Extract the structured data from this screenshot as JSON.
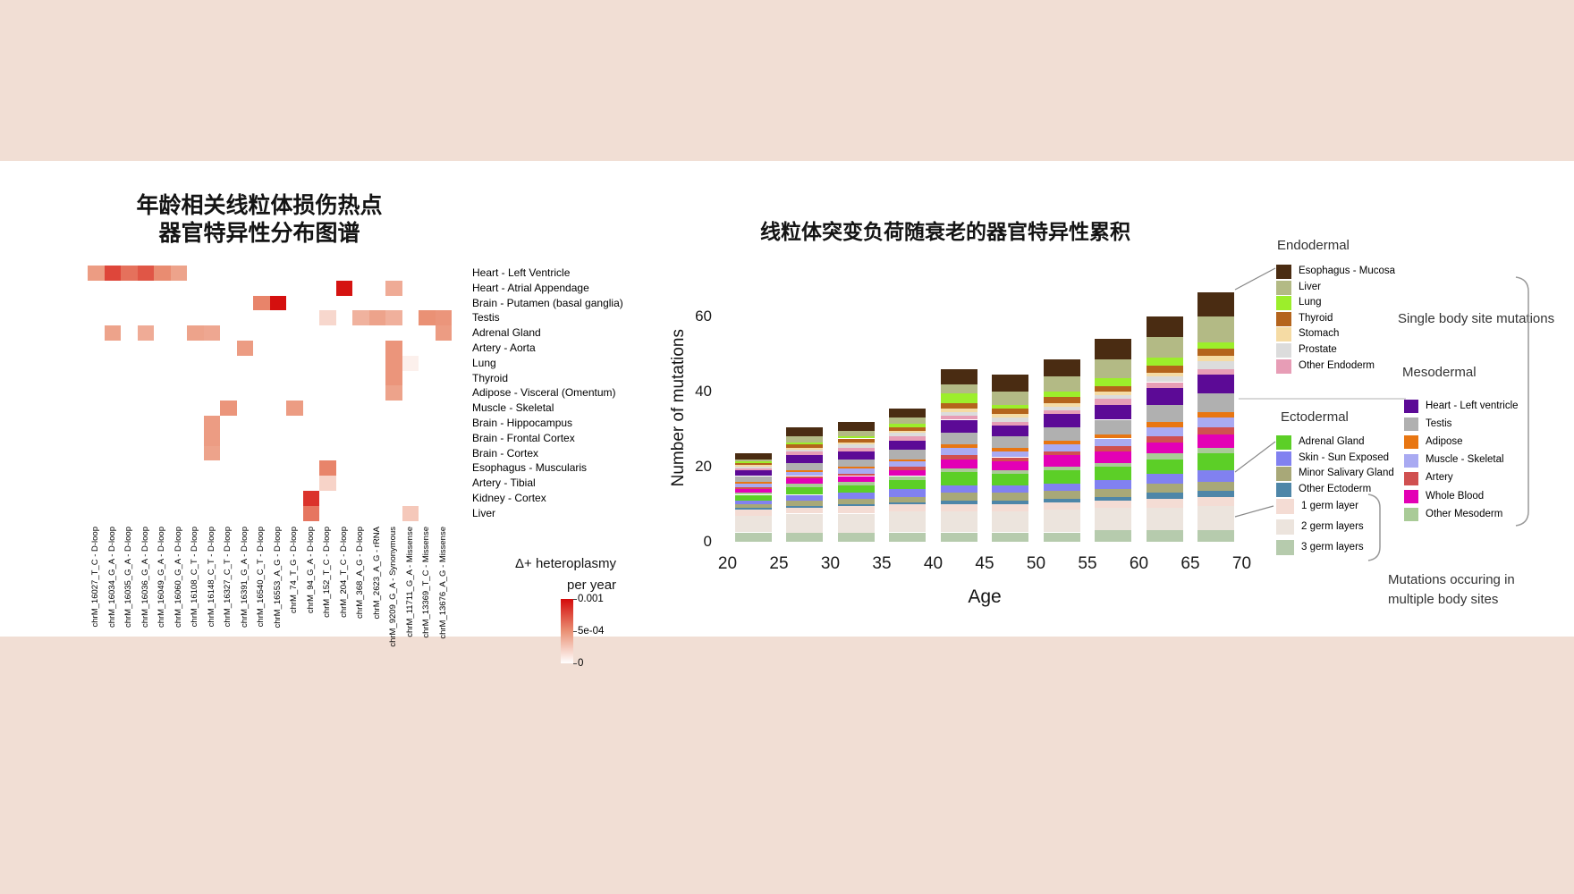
{
  "page": {
    "band_color": "#f1ded4",
    "panel_color": "#ffffff"
  },
  "heatmap_ui": {
    "title1": "年龄相关线粒体损伤热点",
    "title2": "器官特异性分布图谱",
    "legend_title1": "Δ+ heteroplasmy",
    "legend_title2": "per year"
  },
  "barchart_ui": {
    "title": "线粒体突变负荷随衰老的器官特异性累积",
    "ylabel": "Number of mutations",
    "xlabel": "Age",
    "header_endo": "Endodermal",
    "header_ecto": "Ectodermal",
    "header_meso": "Mesodermal",
    "single_site": "Single body site mutations",
    "multi1": "Mutations occuring in",
    "multi2": "multiple body sites"
  },
  "chart_data": [
    {
      "type": "heatmap",
      "title": "年龄相关线粒体损伤热点 器官特异性分布图谱",
      "rows": [
        "Heart - Left Ventricle",
        "Heart - Atrial Appendage",
        "Brain - Putamen (basal ganglia)",
        "Testis",
        "Adrenal Gland",
        "Artery - Aorta",
        "Lung",
        "Thyroid",
        "Adipose - Visceral (Omentum)",
        "Muscle - Skeletal",
        "Brain - Hippocampus",
        "Brain - Frontal Cortex",
        "Brain - Cortex",
        "Esophagus - Muscularis",
        "Artery - Tibial",
        "Kidney - Cortex",
        "Liver"
      ],
      "columns": [
        "chrM_16027_T_C - D-loop",
        "chrM_16034_G_A - D-loop",
        "chrM_16035_G_A - D-loop",
        "chrM_16036_G_A - D-loop",
        "chrM_16049_G_A - D-loop",
        "chrM_16060_G_A - D-loop",
        "chrM_16108_C_T - D-loop",
        "chrM_16148_C_T - D-loop",
        "chrM_16327_C_T - D-loop",
        "chrM_16391_G_A - D-loop",
        "chrM_16540_C_T - D-loop",
        "chrM_16553_A_G - D-loop",
        "chrM_74_T_G - D-loop",
        "chrM_94_G_A - D-loop",
        "chrM_152_T_C - D-loop",
        "chrM_204_T_C - D-loop",
        "chrM_368_A_G - D-loop",
        "chrM_2623_A_G - rRNA",
        "chrM_9209_G_A - Synonymous",
        "chrM_11711_G_A - Missense",
        "chrM_13369_T_C - Missense",
        "chrM_13676_A_G - Missense"
      ],
      "legend": {
        "title": "Δ+ heteroplasmy per year",
        "ticks": [
          "0.001",
          "5e-04",
          "0"
        ],
        "min": 0,
        "max": 0.001
      },
      "cells": [
        [
          0,
          0,
          0.00045
        ],
        [
          0,
          1,
          0.00078
        ],
        [
          0,
          2,
          0.00062
        ],
        [
          0,
          3,
          0.00072
        ],
        [
          0,
          4,
          0.00052
        ],
        [
          0,
          5,
          0.00042
        ],
        [
          1,
          15,
          0.00097
        ],
        [
          1,
          18,
          0.00038
        ],
        [
          2,
          10,
          0.00055
        ],
        [
          2,
          11,
          0.00098
        ],
        [
          3,
          14,
          0.00018
        ],
        [
          3,
          16,
          0.00035
        ],
        [
          3,
          17,
          0.00042
        ],
        [
          3,
          18,
          0.00036
        ],
        [
          3,
          20,
          0.0005
        ],
        [
          3,
          21,
          0.00048
        ],
        [
          4,
          1,
          0.00042
        ],
        [
          4,
          3,
          0.00038
        ],
        [
          4,
          6,
          0.00042
        ],
        [
          4,
          7,
          0.0004
        ],
        [
          4,
          21,
          0.00045
        ],
        [
          5,
          9,
          0.00045
        ],
        [
          5,
          18,
          0.00048
        ],
        [
          6,
          18,
          0.00048
        ],
        [
          6,
          19,
          7e-05
        ],
        [
          7,
          18,
          0.00048
        ],
        [
          8,
          18,
          0.00042
        ],
        [
          9,
          8,
          0.00048
        ],
        [
          9,
          12,
          0.00045
        ],
        [
          10,
          7,
          0.00045
        ],
        [
          11,
          7,
          0.00045
        ],
        [
          12,
          7,
          0.00042
        ],
        [
          13,
          14,
          0.00055
        ],
        [
          14,
          14,
          0.0002
        ],
        [
          15,
          13,
          0.00085
        ],
        [
          16,
          13,
          0.0006
        ],
        [
          16,
          19,
          0.00025
        ]
      ]
    },
    {
      "type": "stacked_bar",
      "title": "线粒体突变负荷随衰老的器官特异性累积",
      "xlabel": "Age",
      "ylabel": "Number of mutations",
      "categories": [
        "20-25",
        "25-30",
        "30-35",
        "35-40",
        "40-45",
        "45-50",
        "50-55",
        "55-60",
        "60-65",
        "65-70"
      ],
      "xticks": [
        20,
        25,
        30,
        35,
        40,
        45,
        50,
        55,
        60,
        65,
        70
      ],
      "yticks": [
        0,
        20,
        40,
        60
      ],
      "ylim": [
        0,
        75
      ],
      "legend_position": "right",
      "series": [
        {
          "name": "3 germ layers",
          "group": "multi_site",
          "color": "#b6cbad",
          "values": [
            2.5,
            2.5,
            2.5,
            2.5,
            2.5,
            2.5,
            2.5,
            3,
            3,
            3
          ]
        },
        {
          "name": "2 germ layers",
          "group": "multi_site",
          "color": "#ece4dd",
          "values": [
            4.5,
            5,
            5,
            5.5,
            5.5,
            5.5,
            6,
            6,
            6,
            6.5
          ]
        },
        {
          "name": "1 germ layer",
          "group": "multi_site",
          "color": "#f4dcd4",
          "values": [
            1.5,
            1.5,
            2,
            2,
            2,
            2,
            2,
            2,
            2.5,
            2.5
          ]
        },
        {
          "name": "Other Ectoderm",
          "group": "ectodermal",
          "color": "#4e86a8",
          "values": [
            0.5,
            0.5,
            0.5,
            0.5,
            1,
            1,
            1,
            1,
            1.5,
            1.5
          ]
        },
        {
          "name": "Minor Salivary Gland",
          "group": "ectodermal",
          "color": "#a8a878",
          "values": [
            1,
            1.5,
            1.5,
            1.5,
            2,
            2,
            2,
            2,
            2.5,
            2.5
          ]
        },
        {
          "name": "Skin - Sun Exposed",
          "group": "ectodermal",
          "color": "#8181f0",
          "values": [
            1,
            1.5,
            1.5,
            2,
            2,
            2,
            2,
            2.5,
            2.5,
            3
          ]
        },
        {
          "name": "Adrenal Gland",
          "group": "ectodermal",
          "color": "#5ccf27",
          "values": [
            1.5,
            2,
            2,
            2.5,
            3.5,
            3,
            3.5,
            3.5,
            4,
            4.5
          ]
        },
        {
          "name": "Other Mesoderm",
          "group": "mesodermal",
          "color": "#a9cb97",
          "values": [
            0.5,
            1,
            1,
            1,
            1,
            1,
            1,
            1,
            1.5,
            1.5
          ]
        },
        {
          "name": "Whole Blood",
          "group": "mesodermal",
          "color": "#e300b5",
          "values": [
            1,
            1.5,
            1.5,
            1.5,
            2.5,
            2.5,
            3,
            3,
            3,
            3.5
          ]
        },
        {
          "name": "Artery",
          "group": "mesodermal",
          "color": "#d05050",
          "values": [
            0.5,
            0.5,
            0.5,
            1,
            1,
            1,
            1,
            1.5,
            1.5,
            2
          ]
        },
        {
          "name": "Muscle - Skeletal",
          "group": "mesodermal",
          "color": "#a9aaf2",
          "values": [
            1,
            1,
            1.5,
            1.5,
            2,
            1.5,
            2,
            2,
            2.5,
            2.5
          ]
        },
        {
          "name": "Adipose",
          "group": "mesodermal",
          "color": "#e87612",
          "values": [
            0.5,
            0.5,
            0.5,
            0.5,
            1,
            1,
            1,
            1,
            1.5,
            1.5
          ]
        },
        {
          "name": "Testis",
          "group": "mesodermal",
          "color": "#b0b0b0",
          "values": [
            1.5,
            2,
            2,
            2.5,
            3,
            3,
            3.5,
            4,
            4.5,
            5
          ]
        },
        {
          "name": "Heart - Left ventricle",
          "group": "mesodermal",
          "color": "#5c0a96",
          "values": [
            1.5,
            2,
            2,
            2.5,
            3.5,
            3,
            3.5,
            4,
            4.5,
            5
          ]
        },
        {
          "name": "Other Endoderm",
          "group": "endodermal",
          "color": "#e79db6",
          "values": [
            0.5,
            1,
            1,
            1,
            1,
            1,
            1,
            1.5,
            1.5,
            1.5
          ]
        },
        {
          "name": "Prostate",
          "group": "endodermal",
          "color": "#dcdcdc",
          "values": [
            0.5,
            0.5,
            1,
            1,
            1,
            1,
            1,
            1,
            1.5,
            2
          ]
        },
        {
          "name": "Stomach",
          "group": "endodermal",
          "color": "#f5dba4",
          "values": [
            0.5,
            0.5,
            0.5,
            0.5,
            1,
            1,
            1,
            1,
            1,
            1.5
          ]
        },
        {
          "name": "Thyroid",
          "group": "endodermal",
          "color": "#b4641c",
          "values": [
            0.5,
            1,
            1,
            1,
            1.5,
            1.5,
            1.5,
            1.5,
            2,
            2
          ]
        },
        {
          "name": "Lung",
          "group": "endodermal",
          "color": "#9cee2b",
          "values": [
            0.5,
            0.5,
            0.5,
            1,
            2.5,
            1,
            1.5,
            2,
            2,
            1.5
          ]
        },
        {
          "name": "Liver",
          "group": "endodermal",
          "color": "#b3ba85",
          "values": [
            0.5,
            1.5,
            1.5,
            1.5,
            2.5,
            3.5,
            4,
            5,
            5.5,
            7
          ]
        },
        {
          "name": "Esophagus - Mucosa",
          "group": "endodermal",
          "color": "#4a2c12",
          "values": [
            1.5,
            2.5,
            2.5,
            2.5,
            4,
            4.5,
            4.5,
            5.5,
            5.5,
            6.5
          ]
        }
      ]
    }
  ]
}
